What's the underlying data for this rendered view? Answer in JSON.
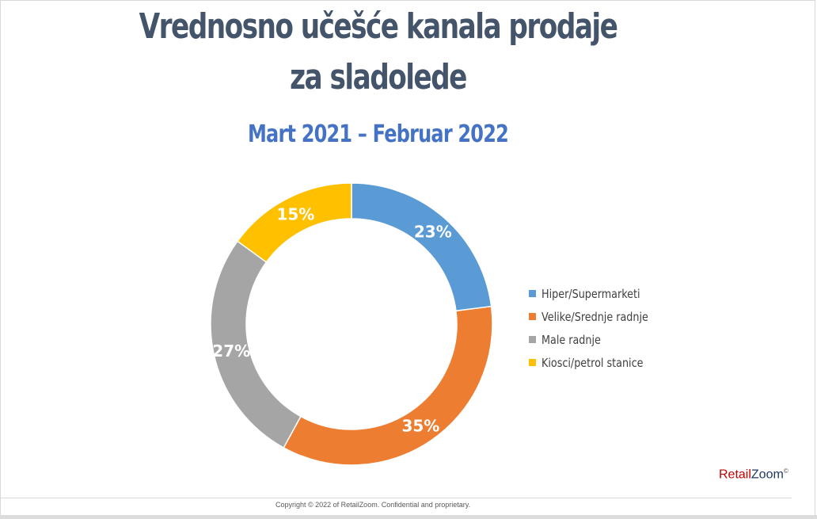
{
  "chart_data": {
    "type": "pie",
    "title": "Vrednosno učešće kanala prodaje za sladolede",
    "subtitle": "Mart 2021 – Februar 2022",
    "categories": [
      "Hiper/Supermarketi",
      "Velike/Srednje radnje",
      "Male radnje",
      "Kiosci/petrol stanice"
    ],
    "values": [
      23,
      35,
      27,
      15
    ],
    "value_labels": [
      "23%",
      "35%",
      "27%",
      "15%"
    ],
    "colors": [
      "#5b9bd5",
      "#ed7d31",
      "#a5a5a5",
      "#ffc000"
    ],
    "legend_position": "right",
    "style": "doughnut"
  },
  "branding": {
    "logo_part1": "Retail",
    "logo_part2": "Zoom",
    "logo_mark": "©"
  },
  "footer": {
    "copyright": "Copyright © 2022 of RetailZoom. Confidential and proprietary."
  }
}
